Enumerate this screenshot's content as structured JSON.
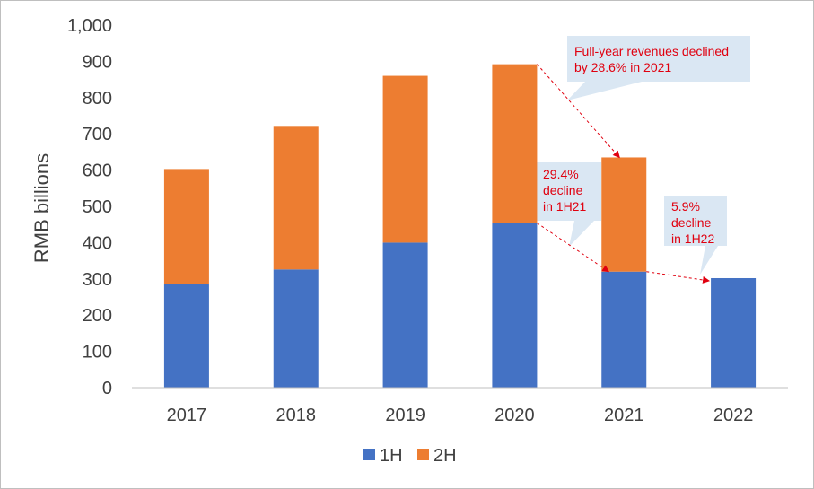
{
  "chart_data": {
    "type": "bar",
    "stacked": true,
    "categories": [
      "2017",
      "2018",
      "2019",
      "2020",
      "2021",
      "2022"
    ],
    "series": [
      {
        "name": "1H",
        "color": "#4472c4",
        "values": [
          285,
          326,
          400,
          454,
          320,
          302
        ]
      },
      {
        "name": "2H",
        "color": "#ed7d31",
        "values": [
          318,
          396,
          460,
          438,
          315,
          null
        ]
      }
    ],
    "ylabel": "RMB billions",
    "ylim": [
      0,
      1000
    ],
    "yticks": [
      "0",
      "100",
      "200",
      "300",
      "400",
      "500",
      "600",
      "700",
      "800",
      "900",
      "1,000"
    ],
    "grid": false,
    "legend_position": "bottom",
    "annotations": [
      {
        "lines": [
          "Full-year revenues declined",
          "by 28.6% in 2021"
        ]
      },
      {
        "lines": [
          "29.4%",
          "decline",
          "in 1H21"
        ]
      },
      {
        "lines": [
          "5.9%",
          "decline",
          "in 1H22"
        ]
      }
    ]
  },
  "colors": {
    "callout_fill": "#dae7f3",
    "callout_text": "#e0000f",
    "axis": "#bfbfbf"
  }
}
